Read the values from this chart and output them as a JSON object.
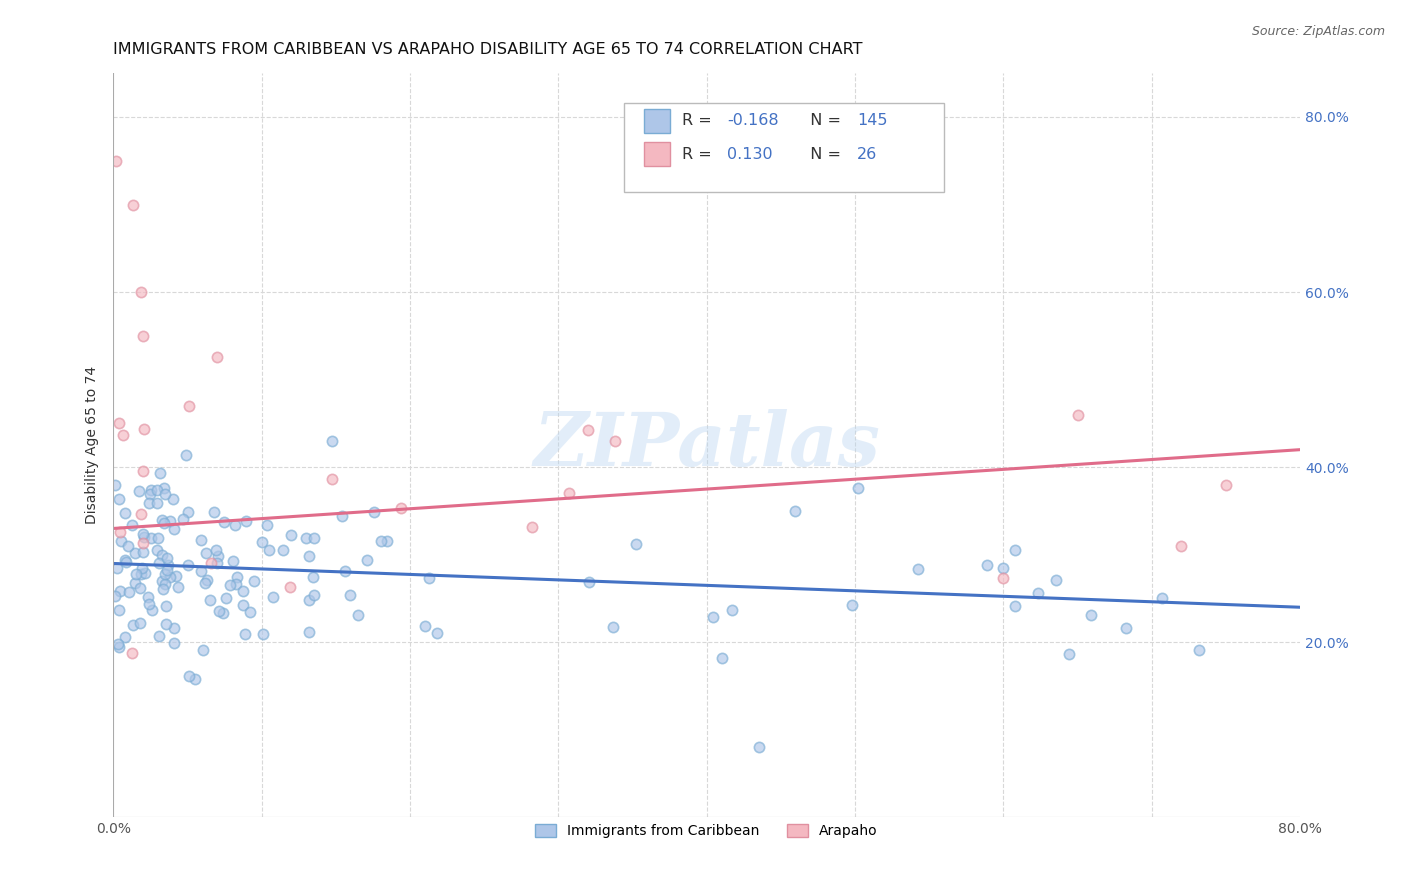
{
  "title": "IMMIGRANTS FROM CARIBBEAN VS ARAPAHO DISABILITY AGE 65 TO 74 CORRELATION CHART",
  "source": "Source: ZipAtlas.com",
  "ylabel": "Disability Age 65 to 74",
  "x_min": 0.0,
  "x_max": 0.8,
  "y_min": 0.0,
  "y_max": 0.85,
  "y_ticks_right": [
    0.2,
    0.4,
    0.6,
    0.8
  ],
  "y_tick_labels_right": [
    "20.0%",
    "40.0%",
    "60.0%",
    "80.0%"
  ],
  "blue_scatter_color": "#aec6e8",
  "pink_scatter_color": "#f4b8c1",
  "blue_line_color": "#4472c4",
  "pink_line_color": "#e06c8a",
  "watermark": "ZIPatlas",
  "blue_R": -0.168,
  "blue_N": 145,
  "pink_R": 0.13,
  "pink_N": 26,
  "blue_line_x0": 0.0,
  "blue_line_y0": 0.29,
  "blue_line_x1": 0.8,
  "blue_line_y1": 0.24,
  "pink_line_x0": 0.0,
  "pink_line_y0": 0.33,
  "pink_line_x1": 0.8,
  "pink_line_y1": 0.42,
  "grid_color": "#d8d8d8",
  "background_color": "#ffffff",
  "title_fontsize": 11.5,
  "axis_label_fontsize": 10,
  "tick_fontsize": 10,
  "scatter_size": 55,
  "scatter_alpha": 0.65,
  "scatter_linewidth": 1.2,
  "scatter_edgecolor_blue": "#7aacd4",
  "scatter_edgecolor_pink": "#e090a0",
  "legend_R_color": "#4472c4",
  "legend_N_color": "#4472c4"
}
